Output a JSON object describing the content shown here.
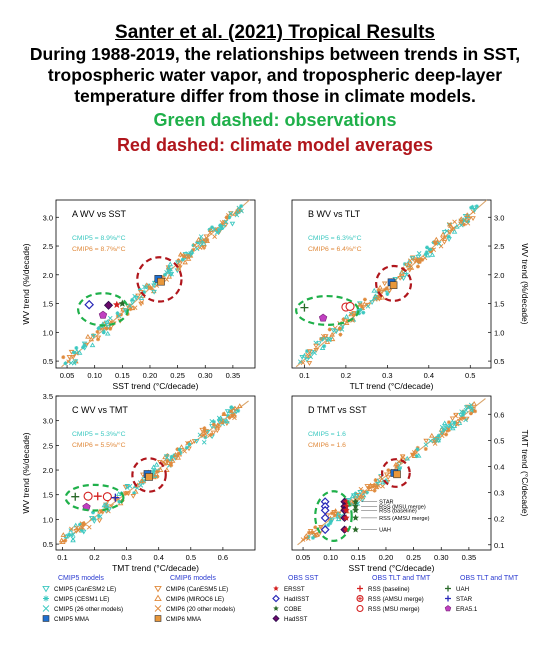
{
  "header": {
    "title": "Santer et al. (2021) Tropical Results",
    "lines": [
      "During 1988-2019, the relationships between trends in SST,",
      "tropospheric water vapor, and tropospheric deep-layer",
      "temperature differ from those in climate models."
    ],
    "observations_note": "Green dashed: observations",
    "models_note": "Red dashed: climate model averages"
  },
  "colors": {
    "obs_green": "#1fb04a",
    "model_red": "#b0161c",
    "cmip5": "#3cc8c0",
    "cmip6": "#e08a3c",
    "cmip5_mma": "#1e6fd0",
    "cmip6_mma": "#e8973a",
    "obs_sst_blue": "#2a2ab8",
    "obs_tlt_red": "#d42020",
    "obs_both_green": "#2a6a2a",
    "era5": "#c040c0"
  },
  "chart_data": [
    {
      "panel": "A",
      "type": "scatter",
      "title": "WV vs SST",
      "xlabel": "SST trend (°C/decade)",
      "ylabel": "WV trend (%/decade)",
      "ylabel_side": "left",
      "xlim": [
        0.03,
        0.39
      ],
      "ylim": [
        0.38,
        3.3
      ],
      "xticks": [
        "0.05",
        "0.10",
        "0.15",
        "0.20",
        "0.25",
        "0.30",
        "0.35"
      ],
      "yticks": [
        "0.5",
        "1.0",
        "1.5",
        "2.0",
        "2.5",
        "3.0"
      ],
      "slopes": [
        {
          "label": "CMIP5 = 8.9%/°C",
          "series": "cmip5"
        },
        {
          "label": "CMIP6 = 8.7%/°C",
          "series": "cmip6"
        }
      ],
      "regression_line": {
        "x": [
          0.04,
          0.38
        ],
        "y": [
          0.4,
          3.3
        ]
      },
      "observations": [
        {
          "name": "HadISST",
          "x": 0.09,
          "y": 1.48,
          "symbol": "diamond-open",
          "color": "obs_sst_blue"
        },
        {
          "name": "HadSST",
          "x": 0.125,
          "y": 1.47,
          "symbol": "diamond-filled",
          "color": "obs_sst_blue"
        },
        {
          "name": "ERA5.1",
          "x": 0.115,
          "y": 1.3,
          "symbol": "pentagon",
          "color": "era5"
        },
        {
          "name": "ERSST",
          "x": 0.14,
          "y": 1.48,
          "symbol": "star",
          "color": "obs_tlt_red"
        },
        {
          "name": "COBE",
          "x": 0.15,
          "y": 1.5,
          "symbol": "star",
          "color": "obs_both_green"
        }
      ],
      "model_means": [
        {
          "name": "CMIP5 MMA",
          "x": 0.215,
          "y": 1.93
        },
        {
          "name": "CMIP6 MMA",
          "x": 0.22,
          "y": 1.88
        }
      ],
      "obs_ellipse": {
        "cx": 0.115,
        "cy": 1.4,
        "rx": 0.045,
        "ry": 0.28
      },
      "model_circle": {
        "cx": 0.217,
        "cy": 1.92,
        "r": 0.04
      }
    },
    {
      "panel": "B",
      "type": "scatter",
      "title": "WV vs TLT",
      "xlabel": "TLT trend (°C/decade)",
      "ylabel": "WV trend (%/decade)",
      "ylabel_side": "right",
      "xlim": [
        0.07,
        0.55
      ],
      "ylim": [
        0.38,
        3.3
      ],
      "xticks": [
        "0.1",
        "0.2",
        "0.3",
        "0.4",
        "0.5"
      ],
      "yticks": [
        "0.5",
        "1.0",
        "1.5",
        "2.0",
        "2.5",
        "3.0"
      ],
      "slopes": [
        {
          "label": "CMIP5 = 6.3%/°C",
          "series": "cmip5"
        },
        {
          "label": "CMIP6 = 6.4%/°C",
          "series": "cmip6"
        }
      ],
      "regression_line": {
        "x": [
          0.08,
          0.54
        ],
        "y": [
          0.4,
          3.3
        ]
      },
      "observations": [
        {
          "name": "UAH",
          "x": 0.1,
          "y": 1.43,
          "symbol": "plus",
          "color": "obs_both_green"
        },
        {
          "name": "ERA5.1",
          "x": 0.145,
          "y": 1.25,
          "symbol": "pentagon",
          "color": "era5"
        },
        {
          "name": "RSS (AMSU merge)",
          "x": 0.2,
          "y": 1.44,
          "symbol": "circle-open",
          "color": "obs_tlt_red"
        },
        {
          "name": "RSS (MSU merge)",
          "x": 0.21,
          "y": 1.45,
          "symbol": "circle-open",
          "color": "obs_tlt_red"
        }
      ],
      "model_means": [
        {
          "name": "CMIP5 MMA",
          "x": 0.31,
          "y": 1.87
        },
        {
          "name": "CMIP6 MMA",
          "x": 0.315,
          "y": 1.82
        }
      ],
      "obs_ellipse": {
        "cx": 0.155,
        "cy": 1.38,
        "rx": 0.075,
        "ry": 0.25
      },
      "model_circle": {
        "cx": 0.315,
        "cy": 1.85,
        "r": 0.042
      }
    },
    {
      "panel": "C",
      "type": "scatter",
      "title": "WV vs TMT",
      "xlabel": "TMT trend (°C/decade)",
      "ylabel": "WV trend (%/decade)",
      "ylabel_side": "left",
      "xlim": [
        0.08,
        0.7
      ],
      "ylim": [
        0.38,
        3.5
      ],
      "xticks": [
        "0.1",
        "0.2",
        "0.3",
        "0.4",
        "0.5",
        "0.6"
      ],
      "yticks": [
        "0.5",
        "1.0",
        "1.5",
        "2.0",
        "2.5",
        "3.0",
        "3.5"
      ],
      "slopes": [
        {
          "label": "CMIP5 = 5.3%/°C",
          "series": "cmip5"
        },
        {
          "label": "CMIP6 = 5.5%/°C",
          "series": "cmip6"
        }
      ],
      "regression_line": {
        "x": [
          0.09,
          0.68
        ],
        "y": [
          0.5,
          3.4
        ]
      },
      "observations": [
        {
          "name": "UAH",
          "x": 0.14,
          "y": 1.46,
          "symbol": "plus",
          "color": "obs_both_green"
        },
        {
          "name": "RSS (AMSU merge)",
          "x": 0.18,
          "y": 1.47,
          "symbol": "circle-open",
          "color": "obs_tlt_red"
        },
        {
          "name": "RSS (baseline)",
          "x": 0.21,
          "y": 1.47,
          "symbol": "plus",
          "color": "obs_tlt_red"
        },
        {
          "name": "RSS (MSU merge)",
          "x": 0.24,
          "y": 1.46,
          "symbol": "circle-open",
          "color": "obs_tlt_red"
        },
        {
          "name": "STAR",
          "x": 0.265,
          "y": 1.44,
          "symbol": "plus",
          "color": "obs_sst_blue"
        },
        {
          "name": "ERA5.1",
          "x": 0.175,
          "y": 1.25,
          "symbol": "pentagon",
          "color": "era5"
        }
      ],
      "model_means": [
        {
          "name": "CMIP5 MMA",
          "x": 0.365,
          "y": 1.92
        },
        {
          "name": "CMIP6 MMA",
          "x": 0.37,
          "y": 1.86
        }
      ],
      "obs_ellipse": {
        "cx": 0.2,
        "cy": 1.44,
        "rx": 0.09,
        "ry": 0.26
      },
      "model_circle": {
        "cx": 0.37,
        "cy": 1.9,
        "r": 0.052
      }
    },
    {
      "panel": "D",
      "type": "scatter",
      "title": "TMT vs SST",
      "xlabel": "SST trend (°C/decade)",
      "ylabel": "TMT trend (°C/decade)",
      "ylabel_side": "right",
      "xlim": [
        0.03,
        0.39
      ],
      "ylim": [
        0.08,
        0.67
      ],
      "xticks": [
        "0.05",
        "0.10",
        "0.15",
        "0.20",
        "0.25",
        "0.30",
        "0.35"
      ],
      "yticks": [
        "0.1",
        "0.2",
        "0.3",
        "0.4",
        "0.5",
        "0.6"
      ],
      "slopes": [
        {
          "label": "CMIP5 = 1.6",
          "series": "cmip5"
        },
        {
          "label": "CMIP6 = 1.6",
          "series": "cmip6"
        }
      ],
      "regression_line": {
        "x": [
          0.04,
          0.38
        ],
        "y": [
          0.1,
          0.66
        ]
      },
      "row_labels": [
        {
          "text": "STAR",
          "y": 0.265
        },
        {
          "text": "RSS (MSU merge)",
          "y": 0.247
        },
        {
          "text": "RSS (baseline)",
          "y": 0.232
        },
        {
          "text": "RSS (AMSU merge)",
          "y": 0.203
        },
        {
          "text": "UAH",
          "y": 0.158
        }
      ],
      "observations_columns": [
        {
          "x": 0.09,
          "symbol": "diamond-open",
          "color": "obs_sst_blue",
          "name": "HadISST"
        },
        {
          "x": 0.125,
          "symbol": "diamond-filled",
          "color": "obs_sst_blue",
          "name": "HadSST"
        },
        {
          "x": 0.128,
          "symbol": "star",
          "color": "obs_tlt_red",
          "name": "ERSST"
        },
        {
          "x": 0.145,
          "symbol": "star",
          "color": "obs_both_green",
          "name": "COBE"
        }
      ],
      "observations_rows_y": [
        0.265,
        0.247,
        0.232,
        0.203,
        0.158
      ],
      "model_means": [
        {
          "name": "CMIP5 MMA",
          "x": 0.215,
          "y": 0.375
        },
        {
          "name": "CMIP6 MMA",
          "x": 0.22,
          "y": 0.37
        }
      ],
      "obs_ellipse": {
        "cx": 0.105,
        "cy": 0.21,
        "rx": 0.033,
        "ry": 0.095
      },
      "model_circle": {
        "cx": 0.218,
        "cy": 0.375,
        "r": 0.025
      }
    }
  ],
  "legend": {
    "groups": [
      {
        "title": "CMIP5 models",
        "title_color": "#2a3ad0",
        "items": [
          {
            "symbol": "tri-down",
            "color": "cmip5",
            "label": "CMIP5 (CanESM2 LE)"
          },
          {
            "symbol": "asterisk",
            "color": "cmip5",
            "label": "CMIP5 (CESM1 LE)"
          },
          {
            "symbol": "x",
            "color": "cmip5",
            "label": "CMIP5 (26 other models)"
          },
          {
            "symbol": "square-mma",
            "color": "cmip5_mma",
            "label": "CMIP5 MMA"
          }
        ]
      },
      {
        "title": "CMIP6 models",
        "title_color": "#2a3ad0",
        "items": [
          {
            "symbol": "tri-down",
            "color": "cmip6",
            "label": "CMIP6 (CanESM5 LE)"
          },
          {
            "symbol": "tri-up",
            "color": "cmip6",
            "label": "CMIP6 (MIROC6 LE)"
          },
          {
            "symbol": "x",
            "color": "cmip6",
            "label": "CMIP6 (20 other models)"
          },
          {
            "symbol": "square-mma",
            "color": "cmip6_mma",
            "label": "CMIP6 MMA"
          }
        ]
      },
      {
        "title": "OBS SST",
        "title_color": "#2a3ad0",
        "items": [
          {
            "symbol": "star",
            "color": "obs_tlt_red",
            "label": "ERSST"
          },
          {
            "symbol": "diamond-open",
            "color": "obs_sst_blue",
            "label": "HadISST"
          },
          {
            "symbol": "star",
            "color": "obs_both_green",
            "label": "COBE"
          },
          {
            "symbol": "diamond-filled",
            "color": "obs_sst_blue",
            "label": "HadSST"
          }
        ]
      },
      {
        "title": "OBS TLT and TMT",
        "title_color": "#2a3ad0",
        "items": [
          {
            "symbol": "plus",
            "color": "obs_tlt_red",
            "label": "RSS (baseline)"
          },
          {
            "symbol": "circle-cross",
            "color": "obs_tlt_red",
            "label": "RSS (AMSU merge)"
          },
          {
            "symbol": "circle-open",
            "color": "obs_tlt_red",
            "label": "RSS (MSU merge)"
          }
        ]
      },
      {
        "title": "OBS TLT and TMT",
        "title_color": "#2a3ad0",
        "items": [
          {
            "symbol": "plus",
            "color": "obs_both_green",
            "label": "UAH"
          },
          {
            "symbol": "plus",
            "color": "obs_sst_blue",
            "label": "STAR"
          },
          {
            "symbol": "pentagon",
            "color": "era5",
            "label": "ERA5.1"
          }
        ]
      }
    ]
  }
}
